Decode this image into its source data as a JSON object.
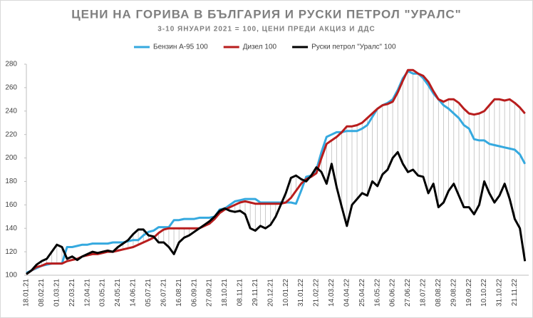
{
  "chart_data": {
    "type": "line",
    "title": "ЦЕНИ НА ГОРИВА В БЪЛГАРИЯ И РУСКИ ПЕТРОЛ \"УРАЛС\"",
    "subtitle": "3-10 ЯНУАРИ 2021 = 100, ЦЕНИ ПРЕДИ АКЦИЗ И ДДС",
    "categories": [
      "18.01.21",
      null,
      null,
      "08.02.21",
      null,
      null,
      "01.03.21",
      null,
      null,
      "22.03.21",
      null,
      null,
      "12.04.21",
      null,
      null,
      "03.05.21",
      null,
      null,
      "24.05.21",
      null,
      null,
      "14.06.21",
      null,
      null,
      "05.07.21",
      null,
      null,
      "26.07.21",
      null,
      null,
      "16.08.21",
      null,
      null,
      "06.09.21",
      null,
      null,
      "27.09.21",
      null,
      null,
      "18.10.21",
      null,
      null,
      "08.11.21",
      null,
      null,
      "29.11.21",
      null,
      null,
      "20.12.21",
      null,
      null,
      "10.01.22",
      null,
      null,
      "31.01.22",
      null,
      null,
      "21.02.22",
      null,
      null,
      "14.03.22",
      null,
      null,
      "04.04.22",
      null,
      null,
      "25.04.22",
      null,
      null,
      "16.05.22",
      null,
      null,
      "06.06.22",
      null,
      null,
      "27.06.22",
      null,
      null,
      "18.07.22",
      null,
      null,
      "08.08.22",
      null,
      null,
      "29.08.22",
      null,
      null,
      "19.09.22",
      null,
      null,
      "10.10.22",
      null,
      null,
      "31.10.22",
      null,
      null,
      "21.11.22",
      null,
      null
    ],
    "series": [
      {
        "name": "Бензин А-95 100",
        "color": "#35a9df",
        "values": [
          102,
          104,
          106,
          108,
          109,
          110,
          110,
          110,
          124,
          124,
          125,
          126,
          126,
          127,
          127,
          127,
          127,
          128,
          128,
          128,
          129,
          130,
          130,
          134,
          137,
          138,
          141,
          141,
          141,
          147,
          147,
          148,
          148,
          148,
          149,
          149,
          149,
          150,
          156,
          157,
          160,
          163,
          164,
          165,
          165,
          165,
          162,
          162,
          162,
          162,
          162,
          162,
          162,
          161,
          172,
          184,
          185,
          190,
          205,
          218,
          220,
          222,
          222,
          223,
          223,
          223,
          225,
          228,
          235,
          242,
          245,
          247,
          250,
          258,
          268,
          274,
          272,
          272,
          268,
          262,
          255,
          250,
          245,
          242,
          238,
          234,
          228,
          225,
          216,
          215,
          215,
          212,
          211,
          210,
          209,
          208,
          207,
          203,
          195
        ]
      },
      {
        "name": "Дизел 100",
        "color": "#b81d1d",
        "values": [
          101,
          104,
          107,
          108,
          110,
          110,
          110,
          110,
          112,
          113,
          114,
          116,
          117,
          118,
          118,
          119,
          120,
          120,
          121,
          122,
          123,
          124,
          126,
          128,
          130,
          132,
          136,
          139,
          140,
          140,
          140,
          140,
          140,
          140,
          140,
          142,
          144,
          148,
          153,
          156,
          158,
          160,
          162,
          163,
          162,
          161,
          161,
          161,
          161,
          161,
          161,
          162,
          166,
          172,
          178,
          182,
          184,
          187,
          200,
          212,
          215,
          218,
          222,
          227,
          227,
          228,
          230,
          234,
          238,
          242,
          245,
          246,
          248,
          256,
          266,
          275,
          275,
          272,
          270,
          265,
          257,
          250,
          248,
          250,
          250,
          247,
          242,
          238,
          237,
          238,
          240,
          245,
          250,
          250,
          249,
          250,
          247,
          243,
          238
        ]
      },
      {
        "name": "Руски петрол \"Уралс\" 100",
        "color": "#000000",
        "values": [
          101,
          104,
          109,
          112,
          114,
          120,
          126,
          124,
          114,
          116,
          113,
          116,
          118,
          120,
          119,
          120,
          121,
          120,
          124,
          127,
          130,
          135,
          139,
          139,
          134,
          133,
          128,
          128,
          124,
          118,
          128,
          132,
          134,
          137,
          140,
          143,
          146,
          150,
          155,
          157,
          155,
          154,
          155,
          152,
          140,
          138,
          142,
          140,
          143,
          150,
          160,
          170,
          183,
          185,
          182,
          180,
          185,
          192,
          188,
          178,
          195,
          175,
          158,
          142,
          160,
          165,
          170,
          168,
          180,
          176,
          186,
          190,
          200,
          205,
          195,
          188,
          190,
          185,
          184,
          170,
          178,
          158,
          162,
          172,
          178,
          168,
          158,
          158,
          152,
          160,
          180,
          170,
          162,
          168,
          178,
          165,
          148,
          140,
          112
        ]
      }
    ],
    "ylim": [
      100,
      280
    ],
    "yticks": [
      100,
      120,
      140,
      160,
      180,
      200,
      220,
      240,
      260,
      280
    ],
    "drop_lines": true,
    "legend": "top"
  }
}
